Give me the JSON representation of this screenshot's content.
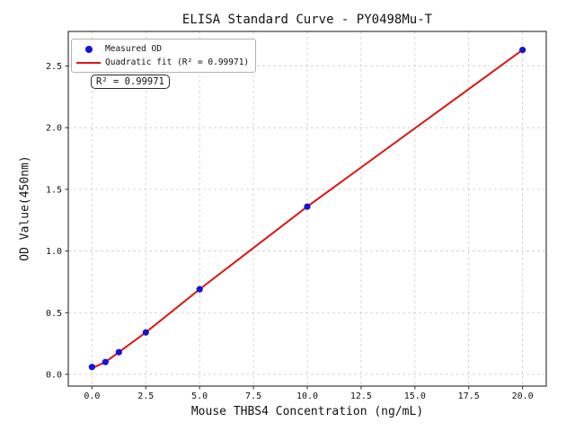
{
  "figure": {
    "background": "#ffffff",
    "frame_color": "#2b2b2b",
    "text_color": "#111111"
  },
  "chart_data": {
    "type": "scatter",
    "title": "ELISA Standard Curve - PY0498Mu-T",
    "xlabel": "Mouse THBS4 Concentration (ng/mL)",
    "ylabel": "OD Value(450nm)",
    "xlim": [
      -1.1,
      21.1
    ],
    "ylim": [
      -0.095,
      2.78
    ],
    "x_ticks": [
      0,
      2.5,
      5,
      7.5,
      10,
      12.5,
      15,
      17.5,
      20
    ],
    "x_tick_labels": [
      "0.0",
      "2.5",
      "5.0",
      "7.5",
      "10.0",
      "12.5",
      "15.0",
      "17.5",
      "20.0"
    ],
    "y_ticks": [
      0,
      0.5,
      1,
      1.5,
      2,
      2.5
    ],
    "y_tick_labels": [
      "0.0",
      "0.5",
      "1.0",
      "1.5",
      "2.0",
      "2.5"
    ],
    "grid": "dashed",
    "grid_color": "#cccccc",
    "legend_position": "upper-left",
    "series": [
      {
        "name": "Measured OD",
        "type": "scatter",
        "marker": "circle",
        "color": "#1414d6",
        "x": [
          0,
          0.625,
          1.25,
          2.5,
          5,
          10,
          20
        ],
        "y": [
          0.06,
          0.1,
          0.18,
          0.34,
          0.69,
          1.36,
          2.63
        ]
      },
      {
        "name": "Quadratic fit (R² = 0.99971)",
        "type": "line",
        "color": "#dd1414",
        "x": [
          0,
          0.625,
          1.25,
          2.5,
          5,
          10,
          20
        ],
        "y": [
          0.05,
          0.1,
          0.18,
          0.34,
          0.69,
          1.36,
          2.63
        ]
      }
    ],
    "annotation": "R² = 0.99971"
  },
  "legend": {
    "items": [
      {
        "label": "Measured OD",
        "marker": "dot",
        "color": "#1414d6"
      },
      {
        "label": "Quadratic fit (R² = 0.99971)",
        "marker": "line",
        "color": "#dd1414"
      }
    ]
  },
  "annotation": {
    "text": "R² = 0.99971"
  }
}
